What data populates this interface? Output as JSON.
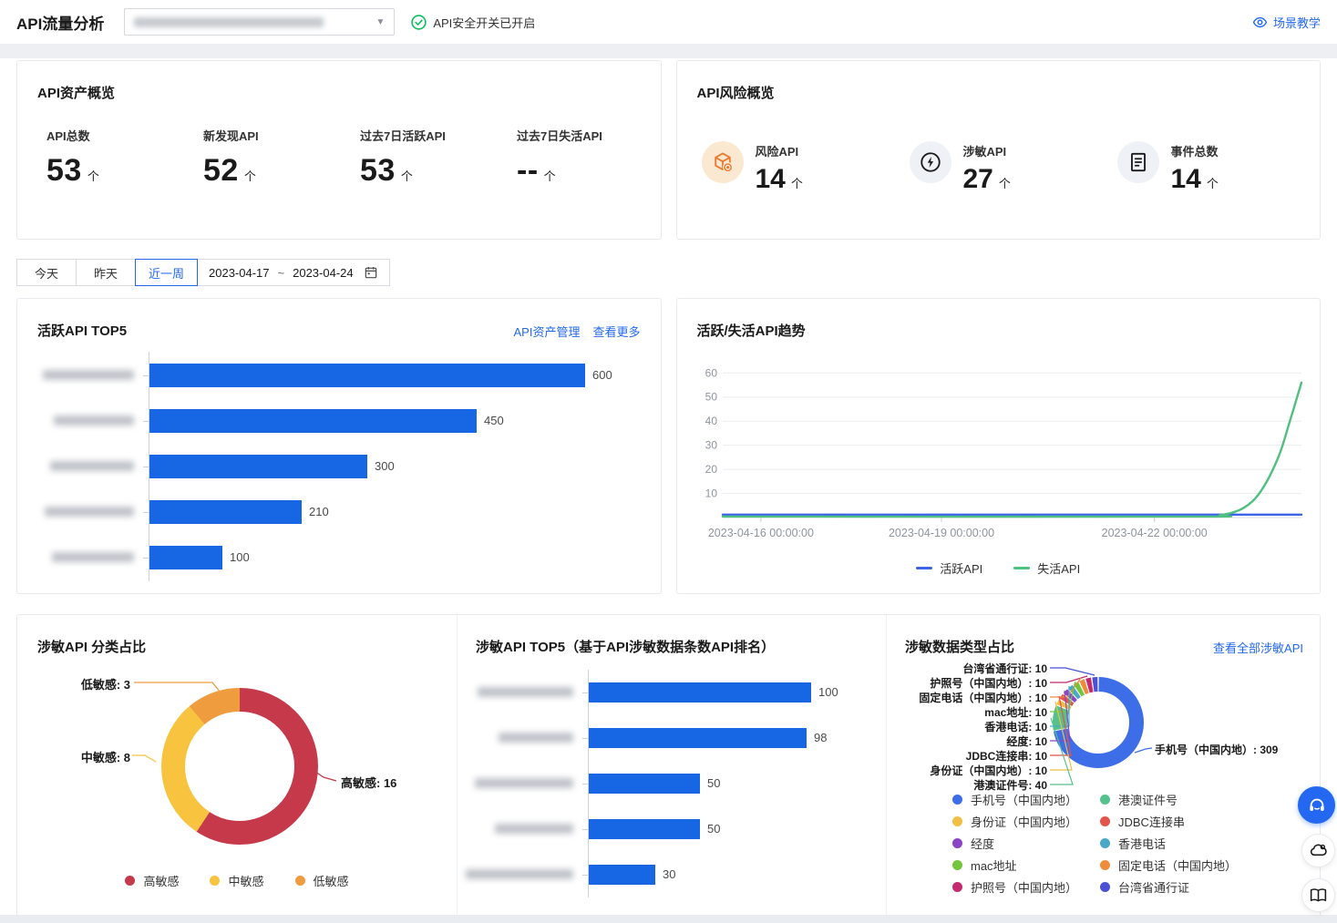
{
  "topbar": {
    "title": "API流量分析",
    "security_status": "API安全开关已开启",
    "tutorial_link": "场景教学"
  },
  "asset_overview": {
    "title": "API资产概览",
    "stats": [
      {
        "label": "API总数",
        "value": "53",
        "unit": "个"
      },
      {
        "label": "新发现API",
        "value": "52",
        "unit": "个"
      },
      {
        "label": "过去7日活跃API",
        "value": "53",
        "unit": "个"
      },
      {
        "label": "过去7日失活API",
        "value": "--",
        "unit": "个"
      }
    ]
  },
  "risk_overview": {
    "title": "API风险概览",
    "stats": [
      {
        "label": "风险API",
        "value": "14",
        "unit": "个",
        "icon": "risk-box-icon"
      },
      {
        "label": "涉敏API",
        "value": "27",
        "unit": "个",
        "icon": "lightning-icon"
      },
      {
        "label": "事件总数",
        "value": "14",
        "unit": "个",
        "icon": "document-icon"
      }
    ]
  },
  "filters": {
    "tabs": [
      {
        "label": "今天",
        "active": false
      },
      {
        "label": "昨天",
        "active": false
      },
      {
        "label": "近一周",
        "active": true
      }
    ],
    "date_start": "2023-04-17",
    "date_separator": "~",
    "date_end": "2023-04-24"
  },
  "active_top5": {
    "title": "活跃API TOP5",
    "link_manage": "API资产管理",
    "link_more": "查看更多"
  },
  "trend": {
    "title": "活跃/失活API趋势"
  },
  "sensitive": {
    "category_title": "涉敏API 分类占比",
    "top5_title": "涉敏API TOP5（基于API涉敏数据条数API排名）",
    "type_title": "涉敏数据类型占比",
    "view_all_link": "查看全部涉敏API"
  },
  "chart_data": [
    {
      "id": "active_api_top5",
      "type": "bar",
      "orientation": "horizontal",
      "title": "活跃API TOP5",
      "categories_redacted": true,
      "values": [
        600,
        450,
        300,
        210,
        100
      ],
      "bar_color": "#1766e4",
      "xlim": [
        0,
        620
      ]
    },
    {
      "id": "api_trend",
      "type": "line",
      "title": "活跃/失活API趋势",
      "yticks": [
        10,
        20,
        30,
        40,
        50,
        60
      ],
      "ylim": [
        0,
        62
      ],
      "grid": true,
      "legend_position": "bottom",
      "x_tick_labels": [
        "2023-04-16 00:00:00",
        "2023-04-19 00:00:00",
        "2023-04-22 00:00:00"
      ],
      "series": [
        {
          "name": "活跃API",
          "color": "#3d63e8",
          "points": [
            [
              0,
              1.2
            ],
            [
              1,
              1.2
            ]
          ]
        },
        {
          "name": "失活API",
          "color": "#4ec07f",
          "points": [
            [
              0,
              0.4
            ],
            [
              0.8,
              0.4
            ],
            [
              0.86,
              1
            ],
            [
              0.9,
              4
            ],
            [
              0.93,
              11
            ],
            [
              0.96,
              25
            ],
            [
              0.98,
              40
            ],
            [
              1,
              56
            ]
          ]
        }
      ]
    },
    {
      "id": "sensitive_category_share",
      "type": "pie",
      "donut": true,
      "title": "涉敏API 分类占比",
      "slices": [
        {
          "label": "高敏感",
          "value": 16,
          "color": "#c5394a"
        },
        {
          "label": "中敏感",
          "value": 8,
          "color": "#f8c33e"
        },
        {
          "label": "低敏感",
          "value": 3,
          "color": "#ef9c3e"
        }
      ],
      "callouts": [
        "低敏感: 3",
        "中敏感: 8",
        "高敏感: 16"
      ]
    },
    {
      "id": "sensitive_api_top5",
      "type": "bar",
      "orientation": "horizontal",
      "title": "涉敏API TOP5（基于API涉敏数据条数API排名）",
      "categories_redacted": true,
      "values": [
        100,
        98,
        50,
        50,
        30
      ],
      "bar_color": "#1766e4",
      "xlim": [
        0,
        103
      ]
    },
    {
      "id": "sensitive_data_type_share",
      "type": "pie",
      "donut": true,
      "title": "涉敏数据类型占比",
      "slices": [
        {
          "label": "手机号（中国内地）",
          "value": 309,
          "color": "#3d6ee8"
        },
        {
          "label": "港澳证件号",
          "value": 40,
          "color": "#55c18c"
        },
        {
          "label": "身份证（中国内地）",
          "value": 10,
          "color": "#f1bf45"
        },
        {
          "label": "JDBC连接串",
          "value": 10,
          "color": "#e4544b"
        },
        {
          "label": "经度",
          "value": 10,
          "color": "#8a44c4"
        },
        {
          "label": "香港电话",
          "value": 10,
          "color": "#49a8c6"
        },
        {
          "label": "mac地址",
          "value": 10,
          "color": "#74c53e"
        },
        {
          "label": "固定电话（中国内地）",
          "value": 10,
          "color": "#ee8c3b"
        },
        {
          "label": "护照号（中国内地）",
          "value": 10,
          "color": "#c42a6e"
        },
        {
          "label": "台湾省通行证",
          "value": 10,
          "color": "#4b51d4"
        }
      ],
      "callouts_left": [
        "台湾省通行证: 10",
        "护照号（中国内地）: 10",
        "固定电话（中国内地）: 10",
        "mac地址: 10",
        "香港电话: 10",
        "经度: 10",
        "JDBC连接串: 10",
        "身份证（中国内地）: 10",
        "港澳证件号: 40"
      ],
      "callout_right": "手机号（中国内地）: 309"
    }
  ]
}
